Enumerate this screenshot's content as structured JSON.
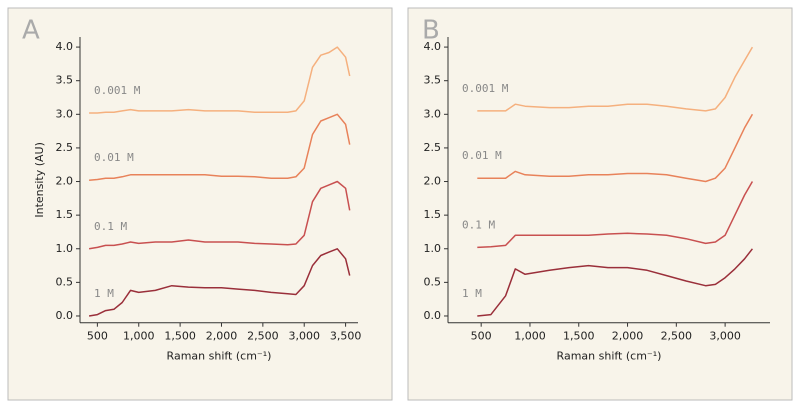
{
  "chart_data": [
    {
      "type": "line",
      "title": "A",
      "x_label": "Raman shift (cm⁻¹)",
      "y_label": "Intensity (AU)",
      "x": [
        400,
        500,
        600,
        700,
        800,
        900,
        1000,
        1200,
        1400,
        1600,
        1800,
        2000,
        2200,
        2400,
        2600,
        2800,
        2900,
        3000,
        3100,
        3200,
        3300,
        3400,
        3500,
        3550
      ],
      "xlim": [
        290,
        3650
      ],
      "xticks": [
        500,
        {
          "value": 1000,
          "label": "1,000"
        },
        {
          "value": 1500,
          "label": "1,500"
        },
        {
          "value": 2000,
          "label": "2,000"
        },
        {
          "value": 2500,
          "label": "2,500"
        },
        {
          "value": 3000,
          "label": "3,000"
        },
        {
          "value": 3500,
          "label": "3,500"
        }
      ],
      "ylim": [
        -0.1,
        4.15
      ],
      "yticks": [
        {
          "value": 0,
          "label": "0.0"
        },
        0.5,
        {
          "value": 1,
          "label": "1.0"
        },
        1.5,
        {
          "value": 2,
          "label": "2.0"
        },
        2.5,
        {
          "value": 3,
          "label": "3.0"
        },
        3.5,
        {
          "value": 4,
          "label": "4.0"
        }
      ],
      "series": [
        {
          "name": "1 M",
          "color": "#9a2f3a",
          "values": [
            0.0,
            0.02,
            0.08,
            0.1,
            0.2,
            0.38,
            0.35,
            0.38,
            0.45,
            0.43,
            0.42,
            0.42,
            0.4,
            0.38,
            0.35,
            0.33,
            0.32,
            0.45,
            0.75,
            0.9,
            0.95,
            1.0,
            0.85,
            0.6
          ]
        },
        {
          "name": "0.1 M",
          "color": "#c85050",
          "values": [
            1.0,
            1.02,
            1.05,
            1.05,
            1.07,
            1.1,
            1.08,
            1.1,
            1.1,
            1.13,
            1.1,
            1.1,
            1.1,
            1.08,
            1.07,
            1.06,
            1.07,
            1.2,
            1.7,
            1.9,
            1.95,
            2.0,
            1.9,
            1.57
          ]
        },
        {
          "name": "0.01 M",
          "color": "#e8825a",
          "values": [
            2.02,
            2.03,
            2.05,
            2.05,
            2.07,
            2.1,
            2.1,
            2.1,
            2.1,
            2.1,
            2.1,
            2.08,
            2.08,
            2.07,
            2.05,
            2.05,
            2.07,
            2.2,
            2.7,
            2.9,
            2.95,
            3.0,
            2.85,
            2.55
          ]
        },
        {
          "name": "0.001 M",
          "color": "#f5b07e",
          "values": [
            3.02,
            3.02,
            3.03,
            3.03,
            3.05,
            3.07,
            3.05,
            3.05,
            3.05,
            3.07,
            3.05,
            3.05,
            3.05,
            3.03,
            3.03,
            3.03,
            3.05,
            3.2,
            3.7,
            3.88,
            3.92,
            4.0,
            3.85,
            3.57
          ]
        }
      ]
    },
    {
      "type": "line",
      "title": "B",
      "x_label": "Raman shift (cm⁻¹)",
      "x": [
        460,
        600,
        750,
        850,
        950,
        1200,
        1400,
        1600,
        1800,
        2000,
        2200,
        2400,
        2600,
        2800,
        2900,
        3000,
        3100,
        3200,
        3280
      ],
      "xlim": [
        160,
        3460
      ],
      "xticks": [
        500,
        {
          "value": 1000,
          "label": "1,000"
        },
        {
          "value": 1500,
          "label": "1,500"
        },
        {
          "value": 2000,
          "label": "2,000"
        },
        {
          "value": 2500,
          "label": "2,500"
        },
        {
          "value": 3000,
          "label": "3,000"
        }
      ],
      "ylim": [
        -0.1,
        4.15
      ],
      "yticks": [
        {
          "value": 0,
          "label": "0.0"
        },
        0.5,
        {
          "value": 1,
          "label": "1.0"
        },
        1.5,
        {
          "value": 2,
          "label": "2.0"
        },
        2.5,
        {
          "value": 3,
          "label": "3.0"
        },
        3.5,
        {
          "value": 4,
          "label": "4.0"
        }
      ],
      "series": [
        {
          "name": "1 M",
          "color": "#9a2f3a",
          "values": [
            0.0,
            0.02,
            0.3,
            0.7,
            0.62,
            0.68,
            0.72,
            0.75,
            0.72,
            0.72,
            0.68,
            0.6,
            0.52,
            0.45,
            0.47,
            0.57,
            0.7,
            0.85,
            1.0
          ]
        },
        {
          "name": "0.1 M",
          "color": "#c85050",
          "values": [
            1.02,
            1.03,
            1.05,
            1.2,
            1.2,
            1.2,
            1.2,
            1.2,
            1.22,
            1.23,
            1.22,
            1.2,
            1.15,
            1.08,
            1.1,
            1.2,
            1.5,
            1.8,
            2.0
          ]
        },
        {
          "name": "0.01 M",
          "color": "#e8825a",
          "values": [
            2.05,
            2.05,
            2.05,
            2.15,
            2.1,
            2.08,
            2.08,
            2.1,
            2.1,
            2.12,
            2.12,
            2.1,
            2.05,
            2.0,
            2.05,
            2.2,
            2.5,
            2.8,
            3.0
          ]
        },
        {
          "name": "0.001 M",
          "color": "#f5b07e",
          "values": [
            3.05,
            3.05,
            3.05,
            3.15,
            3.12,
            3.1,
            3.1,
            3.12,
            3.12,
            3.15,
            3.15,
            3.12,
            3.08,
            3.05,
            3.08,
            3.25,
            3.55,
            3.8,
            4.0
          ]
        }
      ]
    }
  ]
}
